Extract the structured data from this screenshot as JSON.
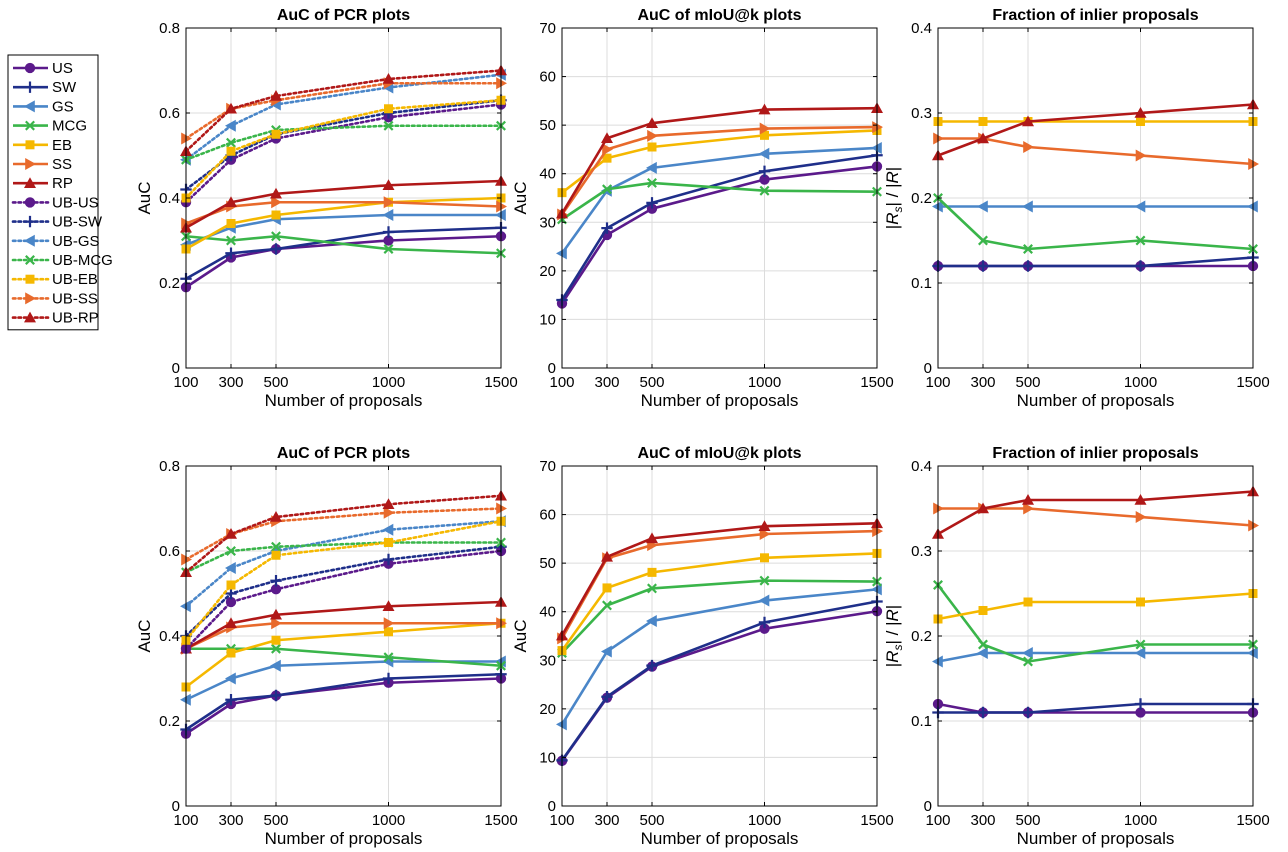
{
  "chart_data": {
    "legend": {
      "placement": "left",
      "entries": [
        {
          "label": "US",
          "color": "#5b1a8b",
          "marker": "circle",
          "dotted": false
        },
        {
          "label": "SW",
          "color": "#1f2f8a",
          "marker": "plus",
          "dotted": false
        },
        {
          "label": "GS",
          "color": "#4a86c8",
          "marker": "triangle-left",
          "dotted": false
        },
        {
          "label": "MCG",
          "color": "#3ab54a",
          "marker": "x",
          "dotted": false
        },
        {
          "label": "EB",
          "color": "#f5b800",
          "marker": "square",
          "dotted": false
        },
        {
          "label": "SS",
          "color": "#e86a2c",
          "marker": "triangle-right",
          "dotted": false
        },
        {
          "label": "RP",
          "color": "#b01818",
          "marker": "triangle-up",
          "dotted": false
        },
        {
          "label": "UB-US",
          "color": "#5b1a8b",
          "marker": "circle",
          "dotted": true
        },
        {
          "label": "UB-SW",
          "color": "#1f2f8a",
          "marker": "plus",
          "dotted": true
        },
        {
          "label": "UB-GS",
          "color": "#4a86c8",
          "marker": "triangle-left",
          "dotted": true
        },
        {
          "label": "UB-MCG",
          "color": "#3ab54a",
          "marker": "x",
          "dotted": true
        },
        {
          "label": "UB-EB",
          "color": "#f5b800",
          "marker": "square",
          "dotted": true
        },
        {
          "label": "UB-SS",
          "color": "#e86a2c",
          "marker": "triangle-right",
          "dotted": true
        },
        {
          "label": "UB-RP",
          "color": "#b01818",
          "marker": "triangle-up",
          "dotted": true
        }
      ]
    },
    "panels": [
      {
        "type": "line",
        "title": "AuC of PCR plots",
        "xlabel": "Number of proposals",
        "ylabel": "AuC",
        "ylabel_math": false,
        "ylim": [
          0,
          0.8
        ],
        "yticks": [
          0,
          0.2,
          0.4,
          0.6,
          0.8
        ],
        "ytick_labels": [
          "0",
          "0.2",
          "0.4",
          "0.6",
          "0.8"
        ],
        "xlim": [
          100,
          1500
        ],
        "xticks": [
          100,
          300,
          500,
          1000,
          1500
        ],
        "x": [
          100,
          300,
          500,
          1000,
          1500
        ],
        "grid": true,
        "series": [
          {
            "name": "US",
            "values": [
              0.19,
              0.26,
              0.28,
              0.3,
              0.31
            ]
          },
          {
            "name": "SW",
            "values": [
              0.21,
              0.27,
              0.28,
              0.32,
              0.33
            ]
          },
          {
            "name": "GS",
            "values": [
              0.29,
              0.33,
              0.35,
              0.36,
              0.36
            ]
          },
          {
            "name": "MCG",
            "values": [
              0.31,
              0.3,
              0.31,
              0.28,
              0.27
            ]
          },
          {
            "name": "EB",
            "values": [
              0.28,
              0.34,
              0.36,
              0.39,
              0.4
            ]
          },
          {
            "name": "SS",
            "values": [
              0.34,
              0.38,
              0.39,
              0.39,
              0.38
            ]
          },
          {
            "name": "RP",
            "values": [
              0.33,
              0.39,
              0.41,
              0.43,
              0.44
            ]
          },
          {
            "name": "UB-US",
            "values": [
              0.39,
              0.49,
              0.54,
              0.59,
              0.62
            ]
          },
          {
            "name": "UB-SW",
            "values": [
              0.42,
              0.5,
              0.55,
              0.6,
              0.63
            ]
          },
          {
            "name": "UB-GS",
            "values": [
              0.49,
              0.57,
              0.62,
              0.66,
              0.69
            ]
          },
          {
            "name": "UB-MCG",
            "values": [
              0.49,
              0.53,
              0.56,
              0.57,
              0.57
            ]
          },
          {
            "name": "UB-EB",
            "values": [
              0.4,
              0.51,
              0.55,
              0.61,
              0.63
            ]
          },
          {
            "name": "UB-SS",
            "values": [
              0.54,
              0.61,
              0.63,
              0.67,
              0.67
            ]
          },
          {
            "name": "UB-RP",
            "values": [
              0.51,
              0.61,
              0.64,
              0.68,
              0.7
            ]
          }
        ]
      },
      {
        "type": "line",
        "title": "AuC of mIoU@k plots",
        "xlabel": "Number of proposals",
        "ylabel": "AuC",
        "ylabel_math": false,
        "ylim": [
          0,
          70
        ],
        "yticks": [
          0,
          10,
          20,
          30,
          40,
          50,
          60,
          70
        ],
        "ytick_labels": [
          "0",
          "10",
          "20",
          "30",
          "40",
          "50",
          "60",
          "70"
        ],
        "xlim": [
          100,
          1500
        ],
        "xticks": [
          100,
          300,
          500,
          1000,
          1500
        ],
        "x": [
          100,
          300,
          500,
          1000,
          1500
        ],
        "grid": true,
        "series": [
          {
            "name": "US",
            "values": [
              13.3,
              27.4,
              32.8,
              38.8,
              41.5
            ]
          },
          {
            "name": "SW",
            "values": [
              14.0,
              28.8,
              34.0,
              40.5,
              43.8
            ]
          },
          {
            "name": "GS",
            "values": [
              23.6,
              36.5,
              41.2,
              44.1,
              45.3
            ]
          },
          {
            "name": "MCG",
            "values": [
              30.6,
              36.8,
              38.1,
              36.5,
              36.3
            ]
          },
          {
            "name": "EB",
            "values": [
              36.1,
              43.2,
              45.5,
              47.9,
              48.9
            ]
          },
          {
            "name": "SS",
            "values": [
              31.6,
              45.0,
              47.8,
              49.3,
              49.6
            ]
          },
          {
            "name": "RP",
            "values": [
              31.8,
              47.3,
              50.4,
              53.2,
              53.5
            ]
          }
        ]
      },
      {
        "type": "line",
        "title": "Fraction of inlier proposals",
        "xlabel": "Number of proposals",
        "ylabel": "|Rs| / |R|",
        "ylabel_math": true,
        "ylim": [
          0,
          0.4
        ],
        "yticks": [
          0,
          0.1,
          0.2,
          0.3,
          0.4
        ],
        "ytick_labels": [
          "0",
          "0.1",
          "0.2",
          "0.3",
          "0.4"
        ],
        "xlim": [
          100,
          1500
        ],
        "xticks": [
          100,
          300,
          500,
          1000,
          1500
        ],
        "x": [
          100,
          300,
          500,
          1000,
          1500
        ],
        "grid": true,
        "series": [
          {
            "name": "US",
            "values": [
              0.12,
              0.12,
              0.12,
              0.12,
              0.12
            ]
          },
          {
            "name": "SW",
            "values": [
              0.12,
              0.12,
              0.12,
              0.12,
              0.13
            ]
          },
          {
            "name": "GS",
            "values": [
              0.19,
              0.19,
              0.19,
              0.19,
              0.19
            ]
          },
          {
            "name": "MCG",
            "values": [
              0.2,
              0.15,
              0.14,
              0.15,
              0.14
            ]
          },
          {
            "name": "EB",
            "values": [
              0.29,
              0.29,
              0.29,
              0.29,
              0.29
            ]
          },
          {
            "name": "SS",
            "values": [
              0.27,
              0.27,
              0.26,
              0.25,
              0.24
            ]
          },
          {
            "name": "RP",
            "values": [
              0.25,
              0.27,
              0.29,
              0.3,
              0.31
            ]
          }
        ]
      },
      {
        "type": "line",
        "title": "AuC of PCR plots",
        "xlabel": "Number of proposals",
        "ylabel": "AuC",
        "ylabel_math": false,
        "ylim": [
          0,
          0.8
        ],
        "yticks": [
          0,
          0.2,
          0.4,
          0.6,
          0.8
        ],
        "ytick_labels": [
          "0",
          "0.2",
          "0.4",
          "0.6",
          "0.8"
        ],
        "xlim": [
          100,
          1500
        ],
        "xticks": [
          100,
          300,
          500,
          1000,
          1500
        ],
        "x": [
          100,
          300,
          500,
          1000,
          1500
        ],
        "grid": true,
        "series": [
          {
            "name": "US",
            "values": [
              0.17,
              0.24,
              0.26,
              0.29,
              0.3
            ]
          },
          {
            "name": "SW",
            "values": [
              0.18,
              0.25,
              0.26,
              0.3,
              0.31
            ]
          },
          {
            "name": "GS",
            "values": [
              0.25,
              0.3,
              0.33,
              0.34,
              0.34
            ]
          },
          {
            "name": "MCG",
            "values": [
              0.37,
              0.37,
              0.37,
              0.35,
              0.33
            ]
          },
          {
            "name": "EB",
            "values": [
              0.28,
              0.36,
              0.39,
              0.41,
              0.43
            ]
          },
          {
            "name": "SS",
            "values": [
              0.37,
              0.42,
              0.43,
              0.43,
              0.43
            ]
          },
          {
            "name": "RP",
            "values": [
              0.37,
              0.43,
              0.45,
              0.47,
              0.48
            ]
          },
          {
            "name": "UB-US",
            "values": [
              0.37,
              0.48,
              0.51,
              0.57,
              0.6
            ]
          },
          {
            "name": "UB-SW",
            "values": [
              0.4,
              0.5,
              0.53,
              0.58,
              0.61
            ]
          },
          {
            "name": "UB-GS",
            "values": [
              0.47,
              0.56,
              0.6,
              0.65,
              0.67
            ]
          },
          {
            "name": "UB-MCG",
            "values": [
              0.55,
              0.6,
              0.61,
              0.62,
              0.62
            ]
          },
          {
            "name": "UB-EB",
            "values": [
              0.39,
              0.52,
              0.59,
              0.62,
              0.67
            ]
          },
          {
            "name": "UB-SS",
            "values": [
              0.58,
              0.64,
              0.67,
              0.69,
              0.7
            ]
          },
          {
            "name": "UB-RP",
            "values": [
              0.55,
              0.64,
              0.68,
              0.71,
              0.73
            ]
          }
        ]
      },
      {
        "type": "line",
        "title": "AuC of mIoU@k plots",
        "xlabel": "Number of proposals",
        "ylabel": "AuC",
        "ylabel_math": false,
        "ylim": [
          0,
          70
        ],
        "yticks": [
          0,
          10,
          20,
          30,
          40,
          50,
          60,
          70
        ],
        "ytick_labels": [
          "0",
          "10",
          "20",
          "30",
          "40",
          "50",
          "60",
          "70"
        ],
        "xlim": [
          100,
          1500
        ],
        "xticks": [
          100,
          300,
          500,
          1000,
          1500
        ],
        "x": [
          100,
          300,
          500,
          1000,
          1500
        ],
        "grid": true,
        "series": [
          {
            "name": "US",
            "values": [
              9.3,
              22.3,
              28.7,
              36.5,
              40.1
            ]
          },
          {
            "name": "SW",
            "values": [
              9.4,
              22.5,
              28.9,
              37.8,
              42.1
            ]
          },
          {
            "name": "GS",
            "values": [
              16.8,
              31.8,
              38.1,
              42.3,
              44.6
            ]
          },
          {
            "name": "MCG",
            "values": [
              31.5,
              41.3,
              44.8,
              46.4,
              46.2
            ]
          },
          {
            "name": "EB",
            "values": [
              32.0,
              44.9,
              48.1,
              51.1,
              52.0
            ]
          },
          {
            "name": "SS",
            "values": [
              34.5,
              51.0,
              53.7,
              56.0,
              56.6
            ]
          },
          {
            "name": "RP",
            "values": [
              35.1,
              51.3,
              55.1,
              57.6,
              58.2
            ]
          }
        ]
      },
      {
        "type": "line",
        "title": "Fraction of inlier proposals",
        "xlabel": "Number of proposals",
        "ylabel": "|Rs| / |R|",
        "ylabel_math": true,
        "ylim": [
          0,
          0.4
        ],
        "yticks": [
          0,
          0.1,
          0.2,
          0.3,
          0.4
        ],
        "ytick_labels": [
          "0",
          "0.1",
          "0.2",
          "0.3",
          "0.4"
        ],
        "xlim": [
          100,
          1500
        ],
        "xticks": [
          100,
          300,
          500,
          1000,
          1500
        ],
        "x": [
          100,
          300,
          500,
          1000,
          1500
        ],
        "grid": true,
        "series": [
          {
            "name": "US",
            "values": [
              0.12,
              0.11,
              0.11,
              0.11,
              0.11
            ]
          },
          {
            "name": "SW",
            "values": [
              0.11,
              0.11,
              0.11,
              0.12,
              0.12
            ]
          },
          {
            "name": "GS",
            "values": [
              0.17,
              0.18,
              0.18,
              0.18,
              0.18
            ]
          },
          {
            "name": "MCG",
            "values": [
              0.26,
              0.19,
              0.17,
              0.19,
              0.19
            ]
          },
          {
            "name": "EB",
            "values": [
              0.22,
              0.23,
              0.24,
              0.24,
              0.25
            ]
          },
          {
            "name": "SS",
            "values": [
              0.35,
              0.35,
              0.35,
              0.34,
              0.33
            ]
          },
          {
            "name": "RP",
            "values": [
              0.32,
              0.35,
              0.36,
              0.36,
              0.37
            ]
          }
        ]
      }
    ]
  }
}
